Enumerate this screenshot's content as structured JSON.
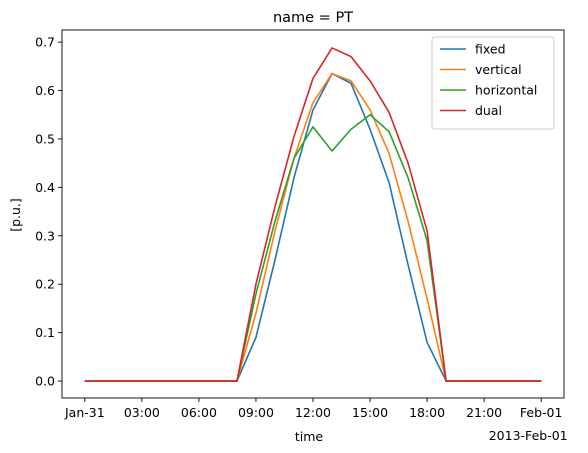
{
  "chart_data": {
    "type": "line",
    "title": "name = PT",
    "xlabel": "time",
    "ylabel": "[p.u.]",
    "x_start_hour": 0,
    "x": [
      0,
      1,
      2,
      3,
      4,
      5,
      6,
      7,
      8,
      9,
      10,
      11,
      12,
      13,
      14,
      15,
      16,
      17,
      18,
      19,
      20,
      21,
      22,
      23,
      24
    ],
    "xlim": [
      -1.2,
      25.2
    ],
    "ylim": [
      -0.035,
      0.725
    ],
    "x_ticks": [
      {
        "hour": 0,
        "label": "Jan-31",
        "sub": ""
      },
      {
        "hour": 3,
        "label": "03:00",
        "sub": ""
      },
      {
        "hour": 6,
        "label": "06:00",
        "sub": ""
      },
      {
        "hour": 9,
        "label": "09:00",
        "sub": ""
      },
      {
        "hour": 12,
        "label": "12:00",
        "sub": ""
      },
      {
        "hour": 15,
        "label": "15:00",
        "sub": ""
      },
      {
        "hour": 18,
        "label": "18:00",
        "sub": ""
      },
      {
        "hour": 21,
        "label": "21:00",
        "sub": ""
      },
      {
        "hour": 24,
        "label": "Feb-01",
        "sub": "2013-Feb-01"
      }
    ],
    "y_ticks": [
      {
        "value": 0.0,
        "label": "0.0"
      },
      {
        "value": 0.1,
        "label": "0.1"
      },
      {
        "value": 0.2,
        "label": "0.2"
      },
      {
        "value": 0.3,
        "label": "0.3"
      },
      {
        "value": 0.4,
        "label": "0.4"
      },
      {
        "value": 0.5,
        "label": "0.5"
      },
      {
        "value": 0.6,
        "label": "0.6"
      },
      {
        "value": 0.7,
        "label": "0.7"
      }
    ],
    "grid": false,
    "legend_position": "top-right",
    "series": [
      {
        "name": "fixed",
        "color": "#1f77b4",
        "values": [
          0,
          0,
          0,
          0,
          0,
          0,
          0,
          0,
          0,
          0.09,
          0.25,
          0.42,
          0.56,
          0.635,
          0.615,
          0.52,
          0.41,
          0.24,
          0.08,
          0,
          0,
          0,
          0,
          0,
          0
        ]
      },
      {
        "name": "vertical",
        "color": "#ff7f0e",
        "values": [
          0,
          0,
          0,
          0,
          0,
          0,
          0,
          0,
          0,
          0.14,
          0.31,
          0.46,
          0.575,
          0.635,
          0.62,
          0.56,
          0.47,
          0.33,
          0.17,
          0,
          0,
          0,
          0,
          0,
          0
        ]
      },
      {
        "name": "horizontal",
        "color": "#2ca02c",
        "values": [
          0,
          0,
          0,
          0,
          0,
          0,
          0,
          0,
          0,
          0.18,
          0.33,
          0.46,
          0.525,
          0.475,
          0.52,
          0.55,
          0.515,
          0.42,
          0.29,
          0,
          0,
          0,
          0,
          0,
          0
        ]
      },
      {
        "name": "dual",
        "color": "#d62728",
        "values": [
          0,
          0,
          0,
          0,
          0,
          0,
          0,
          0,
          0,
          0.2,
          0.36,
          0.505,
          0.625,
          0.688,
          0.67,
          0.62,
          0.555,
          0.45,
          0.31,
          0,
          0,
          0,
          0,
          0,
          0
        ]
      }
    ]
  }
}
